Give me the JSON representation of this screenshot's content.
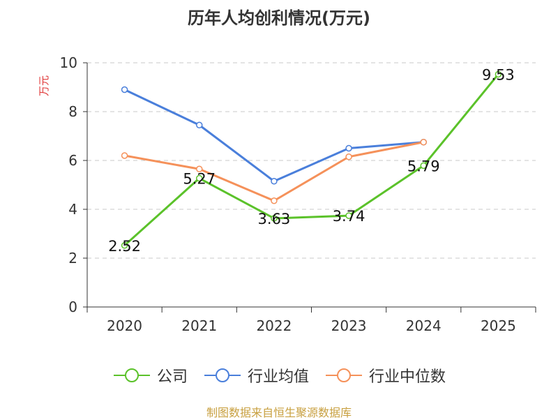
{
  "title": "历年人均创利情况(万元)",
  "source": "制图数据来自恒生聚源数据库",
  "chart_data": {
    "type": "line",
    "categories": [
      "2020",
      "2021",
      "2022",
      "2023",
      "2024",
      "2025"
    ],
    "ylabel": "万元",
    "ylim": [
      0,
      10
    ],
    "yticks": [
      "0",
      "2",
      "4",
      "6",
      "8",
      "10"
    ],
    "grid": true,
    "legend_position": "bottom",
    "series": [
      {
        "name": "公司",
        "color": "#5bc22a",
        "values": [
          2.52,
          5.27,
          3.63,
          3.74,
          5.79,
          9.53
        ],
        "labels": [
          "2.52",
          "5.27",
          "3.63",
          "3.74",
          "5.79",
          "9.53"
        ]
      },
      {
        "name": "行业均值",
        "color": "#4a7fdb",
        "values": [
          8.9,
          7.45,
          5.15,
          6.5,
          6.75,
          null
        ]
      },
      {
        "name": "行业中位数",
        "color": "#f5915a",
        "values": [
          6.2,
          5.65,
          4.35,
          6.15,
          6.75,
          null
        ]
      }
    ]
  }
}
